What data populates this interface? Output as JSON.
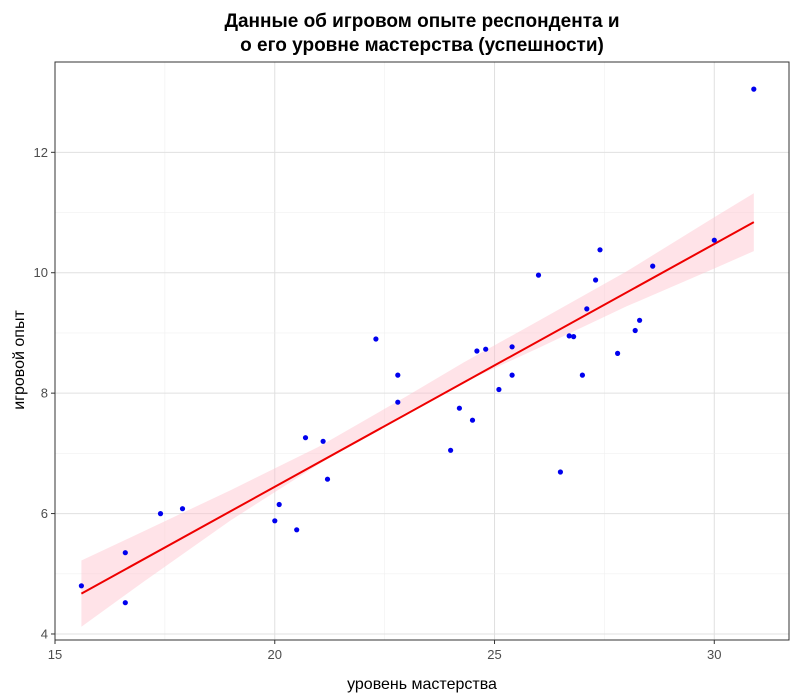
{
  "chart_data": {
    "type": "scatter",
    "title_lines": [
      "Данные об игровом опыте респондента и",
      "о его уровне мастерства (успешности)"
    ],
    "xlabel": "уровень мастерства",
    "ylabel": "игровой опыт",
    "xlim": [
      15.0,
      31.7
    ],
    "ylim": [
      3.9,
      13.5
    ],
    "x_ticks": [
      15,
      20,
      25,
      30
    ],
    "y_ticks": [
      4,
      6,
      8,
      10,
      12
    ],
    "x_tick_labels": [
      "15",
      "20",
      "25",
      "30"
    ],
    "y_tick_labels": [
      "4",
      "6",
      "8",
      "10",
      "12"
    ],
    "grid": true,
    "point_color": "#0000ee",
    "line_color": "#ee0000",
    "band_color": "#ffc0cb",
    "points": [
      {
        "x": 15.6,
        "y": 4.8
      },
      {
        "x": 16.6,
        "y": 5.35
      },
      {
        "x": 16.6,
        "y": 4.52
      },
      {
        "x": 17.4,
        "y": 6.0
      },
      {
        "x": 17.9,
        "y": 6.08
      },
      {
        "x": 20.0,
        "y": 5.88
      },
      {
        "x": 20.1,
        "y": 6.15
      },
      {
        "x": 20.5,
        "y": 5.73
      },
      {
        "x": 20.7,
        "y": 7.26
      },
      {
        "x": 21.1,
        "y": 7.2
      },
      {
        "x": 21.2,
        "y": 6.57
      },
      {
        "x": 22.3,
        "y": 8.9
      },
      {
        "x": 22.8,
        "y": 8.3
      },
      {
        "x": 22.8,
        "y": 7.85
      },
      {
        "x": 24.0,
        "y": 7.05
      },
      {
        "x": 24.2,
        "y": 7.75
      },
      {
        "x": 24.5,
        "y": 7.55
      },
      {
        "x": 24.6,
        "y": 8.7
      },
      {
        "x": 24.8,
        "y": 8.73
      },
      {
        "x": 25.1,
        "y": 8.06
      },
      {
        "x": 25.4,
        "y": 8.3
      },
      {
        "x": 25.4,
        "y": 8.77
      },
      {
        "x": 26.0,
        "y": 9.96
      },
      {
        "x": 26.5,
        "y": 6.69
      },
      {
        "x": 26.7,
        "y": 8.95
      },
      {
        "x": 26.8,
        "y": 8.94
      },
      {
        "x": 27.0,
        "y": 8.3
      },
      {
        "x": 27.1,
        "y": 9.4
      },
      {
        "x": 27.3,
        "y": 9.88
      },
      {
        "x": 27.4,
        "y": 10.38
      },
      {
        "x": 27.8,
        "y": 8.66
      },
      {
        "x": 28.2,
        "y": 9.04
      },
      {
        "x": 28.3,
        "y": 9.21
      },
      {
        "x": 28.6,
        "y": 10.11
      },
      {
        "x": 30.0,
        "y": 10.54
      },
      {
        "x": 30.9,
        "y": 13.05
      }
    ],
    "fit_line": {
      "x": [
        15.6,
        30.9
      ],
      "y": [
        4.67,
        10.84
      ]
    },
    "confidence_band": {
      "x": [
        15.6,
        17.0,
        19.0,
        21.0,
        23.0,
        24.3,
        26.0,
        28.0,
        30.0,
        30.9
      ],
      "lower": [
        4.12,
        4.86,
        5.89,
        6.82,
        7.68,
        8.18,
        8.75,
        9.44,
        10.07,
        10.36
      ],
      "upper": [
        5.22,
        5.7,
        6.39,
        7.11,
        7.95,
        8.51,
        9.2,
        10.02,
        10.92,
        11.32
      ]
    }
  }
}
